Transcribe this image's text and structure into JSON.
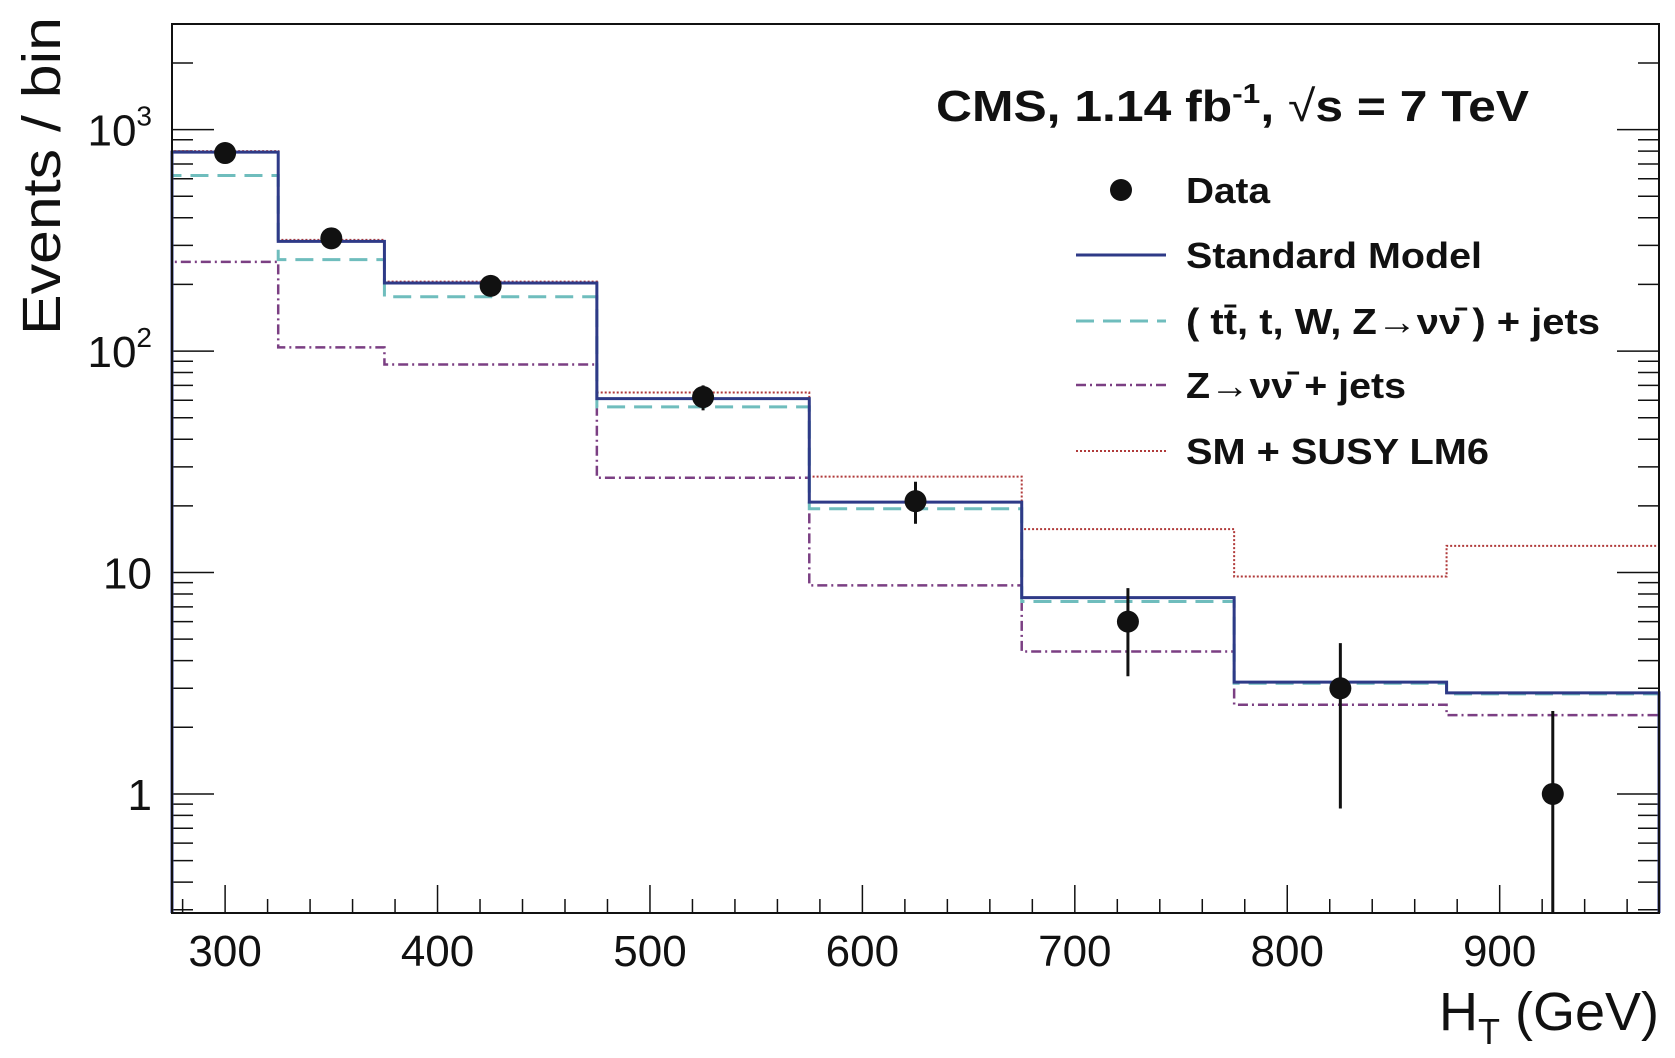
{
  "chart_data": {
    "type": "histogram-step",
    "title": "CMS, 1.14 fb-1, √s = 7 TeV",
    "title_parts": {
      "pre": "CMS, 1.14 fb",
      "sup": "-1",
      "mid": ", ",
      "sqrt": "√",
      "post": "s = 7 TeV"
    },
    "xlabel": {
      "main": "H",
      "sub": "T",
      "rest": " (GeV)"
    },
    "ylabel": "Events / bin",
    "xlim": [
      275,
      975
    ],
    "ylim": [
      0.29,
      3000
    ],
    "yscale": "log",
    "x_ticks": [
      300,
      400,
      500,
      600,
      700,
      800,
      900
    ],
    "x_tick_labels": [
      "300",
      "400",
      "500",
      "600",
      "700",
      "800",
      "900"
    ],
    "y_ticks": [
      1,
      10,
      100,
      1000
    ],
    "y_tick_labels": [
      {
        "base": "1",
        "exp": ""
      },
      {
        "base": "10",
        "exp": ""
      },
      {
        "base": "10",
        "exp": "2"
      },
      {
        "base": "10",
        "exp": "3"
      }
    ],
    "grid": false,
    "legend_position": "top-right",
    "bin_edges": [
      275,
      325,
      375,
      475,
      575,
      675,
      775,
      875,
      975
    ],
    "series": [
      {
        "name": "Standard Model",
        "style": "solid",
        "color": "#2e3a87",
        "values": [
          792,
          313,
          203,
          61,
          20.8,
          7.7,
          3.2,
          2.86
        ]
      },
      {
        "name": "( tt̄, t, W, Z→νν̄ ) + jets",
        "style": "dashed",
        "color": "#6fbdbd",
        "values": [
          621,
          259,
          176,
          56,
          19.4,
          7.4,
          3.16,
          2.83
        ]
      },
      {
        "name": "Z→νν̄ + jets",
        "style": "dashdot",
        "color": "#7b3f83",
        "values": [
          253,
          104,
          87,
          26.8,
          8.75,
          4.4,
          2.53,
          2.27
        ]
      },
      {
        "name": "SM + SUSY LM6",
        "style": "dotted",
        "color": "#b03a3a",
        "values": [
          800,
          318,
          206,
          65,
          27.1,
          15.7,
          9.6,
          13.2
        ]
      }
    ],
    "data_points": {
      "name": "Data",
      "color": "#111111",
      "x": [
        300,
        350,
        425,
        525,
        625,
        725,
        825,
        925
      ],
      "y": [
        784,
        323,
        197,
        62,
        21,
        6,
        3,
        1
      ],
      "y_low": [
        757,
        305,
        183,
        54,
        16.6,
        3.4,
        0.86,
        0.1
      ],
      "y_high": [
        812,
        341,
        211,
        70,
        25.7,
        8.5,
        4.8,
        2.37
      ]
    }
  }
}
